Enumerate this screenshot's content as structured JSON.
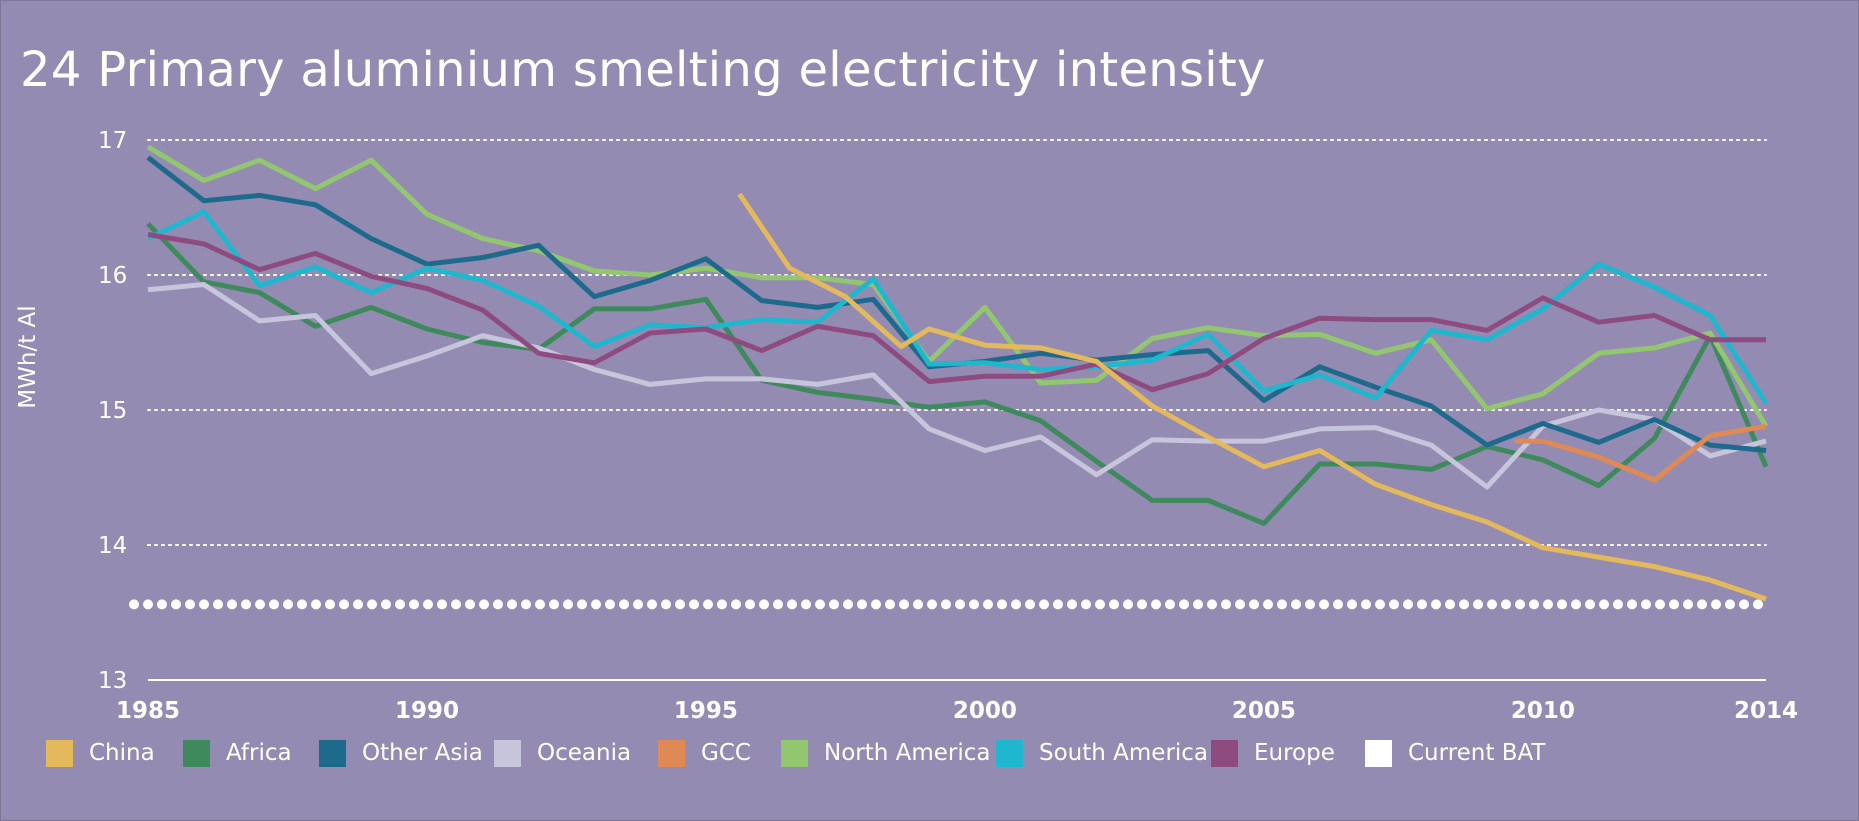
{
  "chart_data": {
    "type": "line",
    "title": "24 Primary aluminium smelting electricity intensity",
    "xlabel": "",
    "ylabel": "MWh/t Al",
    "xlim": [
      1985,
      2014
    ],
    "ylim": [
      13,
      17
    ],
    "x_ticks": [
      "1985",
      "1990",
      "1995",
      "2000",
      "2005",
      "2010",
      "2014"
    ],
    "y_ticks": [
      "13",
      "14",
      "15",
      "16",
      "17"
    ],
    "grid": "horizontal dotted",
    "legend_position": "bottom",
    "series": [
      {
        "name": "Africa",
        "color": "#3f8a5c",
        "points": [
          [
            1985,
            16.38
          ],
          [
            1986,
            15.95
          ],
          [
            1987,
            15.87
          ],
          [
            1988,
            15.62
          ],
          [
            1989,
            15.76
          ],
          [
            1990,
            15.6
          ],
          [
            1991,
            15.5
          ],
          [
            1992,
            15.45
          ],
          [
            1993,
            15.75
          ],
          [
            1994,
            15.75
          ],
          [
            1995,
            15.82
          ],
          [
            1996,
            15.22
          ],
          [
            1997,
            15.13
          ],
          [
            1998,
            15.08
          ],
          [
            1999,
            15.02
          ],
          [
            2000,
            15.06
          ],
          [
            2001,
            14.92
          ],
          [
            2002,
            14.62
          ],
          [
            2003,
            14.33
          ],
          [
            2004,
            14.33
          ],
          [
            2005,
            14.16
          ],
          [
            2006,
            14.6
          ],
          [
            2007,
            14.6
          ],
          [
            2008,
            14.56
          ],
          [
            2009,
            14.73
          ],
          [
            2010,
            14.63
          ],
          [
            2011,
            14.44
          ],
          [
            2012,
            14.79
          ],
          [
            2013,
            15.55
          ],
          [
            2014,
            14.58
          ]
        ]
      },
      {
        "name": "Oceania",
        "color": "#c7c5dc",
        "points": [
          [
            1985,
            15.89
          ],
          [
            1986,
            15.93
          ],
          [
            1987,
            15.66
          ],
          [
            1988,
            15.7
          ],
          [
            1989,
            15.27
          ],
          [
            1990,
            15.4
          ],
          [
            1991,
            15.55
          ],
          [
            1992,
            15.46
          ],
          [
            1993,
            15.3
          ],
          [
            1994,
            15.19
          ],
          [
            1995,
            15.23
          ],
          [
            1996,
            15.23
          ],
          [
            1997,
            15.19
          ],
          [
            1998,
            15.26
          ],
          [
            1999,
            14.86
          ],
          [
            2000,
            14.7
          ],
          [
            2001,
            14.8
          ],
          [
            2002,
            14.52
          ],
          [
            2003,
            14.78
          ],
          [
            2004,
            14.77
          ],
          [
            2005,
            14.77
          ],
          [
            2006,
            14.86
          ],
          [
            2007,
            14.87
          ],
          [
            2008,
            14.74
          ],
          [
            2009,
            14.43
          ],
          [
            2010,
            14.88
          ],
          [
            2011,
            15.0
          ],
          [
            2012,
            14.93
          ],
          [
            2013,
            14.66
          ],
          [
            2014,
            14.77
          ]
        ]
      },
      {
        "name": "North America",
        "color": "#93c76f",
        "points": [
          [
            1985,
            16.95
          ],
          [
            1986,
            16.7
          ],
          [
            1987,
            16.85
          ],
          [
            1988,
            16.64
          ],
          [
            1989,
            16.85
          ],
          [
            1990,
            16.45
          ],
          [
            1991,
            16.27
          ],
          [
            1992,
            16.18
          ],
          [
            1993,
            16.03
          ],
          [
            1994,
            16.0
          ],
          [
            1995,
            16.05
          ],
          [
            1996,
            15.98
          ],
          [
            1997,
            15.98
          ],
          [
            1998,
            15.93
          ],
          [
            1999,
            15.36
          ],
          [
            2000,
            15.76
          ],
          [
            2001,
            15.2
          ],
          [
            2002,
            15.22
          ],
          [
            2003,
            15.53
          ],
          [
            2004,
            15.61
          ],
          [
            2005,
            15.55
          ],
          [
            2006,
            15.56
          ],
          [
            2007,
            15.42
          ],
          [
            2008,
            15.52
          ],
          [
            2009,
            15.01
          ],
          [
            2010,
            15.12
          ],
          [
            2011,
            15.42
          ],
          [
            2012,
            15.46
          ],
          [
            2013,
            15.57
          ],
          [
            2014,
            14.88
          ]
        ]
      },
      {
        "name": "Other Asia",
        "color": "#1d6a8c",
        "points": [
          [
            1985,
            16.87
          ],
          [
            1986,
            16.55
          ],
          [
            1987,
            16.59
          ],
          [
            1988,
            16.52
          ],
          [
            1989,
            16.27
          ],
          [
            1990,
            16.08
          ],
          [
            1991,
            16.13
          ],
          [
            1992,
            16.22
          ],
          [
            1993,
            15.84
          ],
          [
            1994,
            15.96
          ],
          [
            1995,
            16.12
          ],
          [
            1996,
            15.81
          ],
          [
            1997,
            15.76
          ],
          [
            1998,
            15.82
          ],
          [
            1999,
            15.32
          ],
          [
            2000,
            15.36
          ],
          [
            2001,
            15.42
          ],
          [
            2002,
            15.37
          ],
          [
            2003,
            15.41
          ],
          [
            2004,
            15.44
          ],
          [
            2005,
            15.07
          ],
          [
            2006,
            15.32
          ],
          [
            2007,
            15.17
          ],
          [
            2008,
            15.03
          ],
          [
            2009,
            14.74
          ],
          [
            2010,
            14.9
          ],
          [
            2011,
            14.76
          ],
          [
            2012,
            14.93
          ],
          [
            2013,
            14.74
          ],
          [
            2014,
            14.7
          ]
        ]
      },
      {
        "name": "South America",
        "color": "#1fb7ce",
        "points": [
          [
            1985,
            16.27
          ],
          [
            1986,
            16.47
          ],
          [
            1987,
            15.92
          ],
          [
            1988,
            16.06
          ],
          [
            1989,
            15.87
          ],
          [
            1990,
            16.05
          ],
          [
            1991,
            15.96
          ],
          [
            1992,
            15.77
          ],
          [
            1993,
            15.47
          ],
          [
            1994,
            15.63
          ],
          [
            1995,
            15.61
          ],
          [
            1996,
            15.67
          ],
          [
            1997,
            15.65
          ],
          [
            1998,
            15.97
          ],
          [
            1999,
            15.34
          ],
          [
            2000,
            15.35
          ],
          [
            2001,
            15.3
          ],
          [
            2002,
            15.32
          ],
          [
            2003,
            15.37
          ],
          [
            2004,
            15.56
          ],
          [
            2005,
            15.14
          ],
          [
            2006,
            15.26
          ],
          [
            2007,
            15.09
          ],
          [
            2008,
            15.59
          ],
          [
            2009,
            15.52
          ],
          [
            2010,
            15.75
          ],
          [
            2011,
            16.08
          ],
          [
            2012,
            15.91
          ],
          [
            2013,
            15.7
          ],
          [
            2014,
            15.05
          ]
        ]
      },
      {
        "name": "Europe",
        "color": "#8e4b80",
        "points": [
          [
            1985,
            16.3
          ],
          [
            1986,
            16.23
          ],
          [
            1987,
            16.04
          ],
          [
            1988,
            16.16
          ],
          [
            1989,
            15.99
          ],
          [
            1990,
            15.9
          ],
          [
            1991,
            15.74
          ],
          [
            1992,
            15.42
          ],
          [
            1993,
            15.35
          ],
          [
            1994,
            15.57
          ],
          [
            1995,
            15.6
          ],
          [
            1996,
            15.44
          ],
          [
            1997,
            15.62
          ],
          [
            1998,
            15.55
          ],
          [
            1999,
            15.21
          ],
          [
            2000,
            15.25
          ],
          [
            2001,
            15.25
          ],
          [
            2002,
            15.34
          ],
          [
            2003,
            15.15
          ],
          [
            2004,
            15.27
          ],
          [
            2005,
            15.53
          ],
          [
            2006,
            15.68
          ],
          [
            2007,
            15.67
          ],
          [
            2008,
            15.67
          ],
          [
            2009,
            15.59
          ],
          [
            2010,
            15.83
          ],
          [
            2011,
            15.65
          ],
          [
            2012,
            15.7
          ],
          [
            2013,
            15.52
          ],
          [
            2014,
            15.52
          ]
        ]
      },
      {
        "name": "GCC",
        "color": "#df8a55",
        "points": [
          [
            2009.5,
            14.77
          ],
          [
            2010,
            14.77
          ],
          [
            2011,
            14.65
          ],
          [
            2012,
            14.48
          ],
          [
            2013,
            14.81
          ],
          [
            2014,
            14.88
          ]
        ]
      },
      {
        "name": "China",
        "color": "#e3b95c",
        "points": [
          [
            1995.6,
            16.6
          ],
          [
            1996.5,
            16.05
          ],
          [
            1997.5,
            15.84
          ],
          [
            1998.5,
            15.47
          ],
          [
            1999,
            15.6
          ],
          [
            2000,
            15.48
          ],
          [
            2001,
            15.46
          ],
          [
            2002,
            15.36
          ],
          [
            2003,
            15.03
          ],
          [
            2004,
            14.8
          ],
          [
            2005,
            14.58
          ],
          [
            2006,
            14.7
          ],
          [
            2007,
            14.45
          ],
          [
            2008,
            14.3
          ],
          [
            2009,
            14.17
          ],
          [
            2010,
            13.98
          ],
          [
            2011,
            13.91
          ],
          [
            2012,
            13.84
          ],
          [
            2013,
            13.74
          ],
          [
            2014,
            13.6
          ]
        ]
      },
      {
        "name": "Current BAT",
        "color": "#ffffff",
        "style": "dotted",
        "points": [
          [
            1985,
            13.56
          ],
          [
            2014,
            13.56
          ]
        ]
      }
    ]
  },
  "legend": {
    "items": [
      {
        "label": "China",
        "color": "#e3b95c"
      },
      {
        "label": "Africa",
        "color": "#3f8a5c"
      },
      {
        "label": "Other Asia",
        "color": "#1d6a8c"
      },
      {
        "label": "Oceania",
        "color": "#c7c5dc"
      },
      {
        "label": "GCC",
        "color": "#df8a55"
      },
      {
        "label": "North America",
        "color": "#93c76f"
      },
      {
        "label": "South America",
        "color": "#1fb7ce"
      },
      {
        "label": "Europe",
        "color": "#8e4b80"
      },
      {
        "label": "Current BAT",
        "color": "#ffffff"
      }
    ]
  }
}
